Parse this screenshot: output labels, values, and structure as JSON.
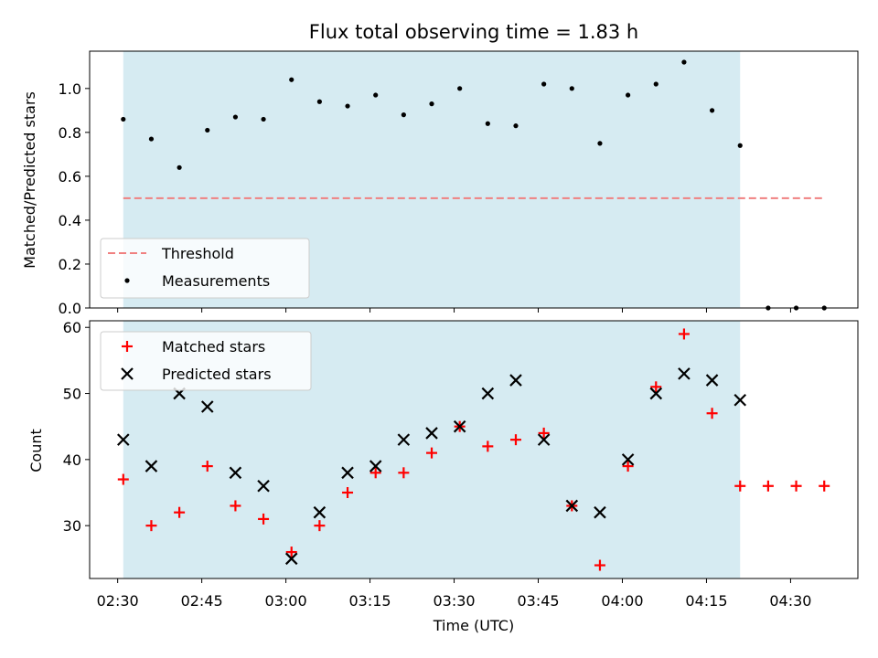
{
  "chart_data": [
    {
      "type": "scatter",
      "title": "Flux total observing time = 1.83 h",
      "ylabel": "Matched/Predicted stars",
      "xlabel": "",
      "xlim": [
        "02:25",
        "04:42"
      ],
      "ylim": [
        0,
        1.17
      ],
      "yticks": [
        "0.0",
        "0.2",
        "0.4",
        "0.6",
        "0.8",
        "1.0"
      ],
      "grid": false,
      "legend_position": "lower-left",
      "shaded_span": [
        "02:31",
        "04:21"
      ],
      "shade_color": "#add8e6",
      "series": [
        {
          "name": "Threshold",
          "style": "dashed-line",
          "color": "#f08080",
          "x": [
            "02:31",
            "04:36"
          ],
          "y": [
            0.5,
            0.5
          ]
        },
        {
          "name": "Measurements",
          "style": "dot",
          "color": "#000000",
          "x": [
            "02:31",
            "02:36",
            "02:41",
            "02:46",
            "02:51",
            "02:56",
            "03:01",
            "03:06",
            "03:11",
            "03:16",
            "03:21",
            "03:26",
            "03:31",
            "03:36",
            "03:41",
            "03:46",
            "03:51",
            "03:56",
            "04:01",
            "04:06",
            "04:11",
            "04:16",
            "04:21",
            "04:26",
            "04:31",
            "04:36"
          ],
          "y": [
            0.86,
            0.77,
            0.64,
            0.81,
            0.87,
            0.86,
            1.04,
            0.94,
            0.92,
            0.97,
            0.88,
            0.93,
            1.0,
            0.84,
            0.83,
            1.02,
            1.0,
            0.75,
            0.97,
            1.02,
            1.12,
            0.9,
            0.74,
            0,
            0,
            0
          ]
        }
      ]
    },
    {
      "type": "scatter",
      "title": "",
      "ylabel": "Count",
      "xlabel": "Time (UTC)",
      "xlim": [
        "02:25",
        "04:42"
      ],
      "xticks": [
        "02:30",
        "02:45",
        "03:00",
        "03:15",
        "03:30",
        "03:45",
        "04:00",
        "04:15",
        "04:30"
      ],
      "ylim": [
        22,
        61
      ],
      "yticks": [
        "30",
        "40",
        "50",
        "60"
      ],
      "grid": false,
      "legend_position": "upper-left",
      "shaded_span": [
        "02:31",
        "04:21"
      ],
      "shade_color": "#add8e6",
      "series": [
        {
          "name": "Matched stars",
          "style": "plus",
          "color": "#ff0000",
          "x": [
            "02:31",
            "02:36",
            "02:41",
            "02:46",
            "02:51",
            "02:56",
            "03:01",
            "03:06",
            "03:11",
            "03:16",
            "03:21",
            "03:26",
            "03:31",
            "03:36",
            "03:41",
            "03:46",
            "03:51",
            "03:56",
            "04:01",
            "04:06",
            "04:11",
            "04:16",
            "04:21",
            "04:26",
            "04:31",
            "04:36"
          ],
          "y": [
            37,
            30,
            32,
            39,
            33,
            31,
            26,
            30,
            35,
            38,
            38,
            41,
            45,
            42,
            43,
            44,
            33,
            24,
            39,
            51,
            59,
            47,
            36,
            36,
            36,
            36
          ]
        },
        {
          "name": "Predicted stars",
          "style": "x",
          "color": "#000000",
          "x": [
            "02:31",
            "02:36",
            "02:41",
            "02:46",
            "02:51",
            "02:56",
            "03:01",
            "03:06",
            "03:11",
            "03:16",
            "03:21",
            "03:26",
            "03:31",
            "03:36",
            "03:41",
            "03:46",
            "03:51",
            "03:56",
            "04:01",
            "04:06",
            "04:11",
            "04:16",
            "04:21"
          ],
          "y": [
            43,
            39,
            50,
            48,
            38,
            36,
            25,
            32,
            38,
            39,
            43,
            44,
            45,
            50,
            52,
            43,
            33,
            32,
            40,
            50,
            53,
            52,
            49
          ]
        }
      ]
    }
  ]
}
